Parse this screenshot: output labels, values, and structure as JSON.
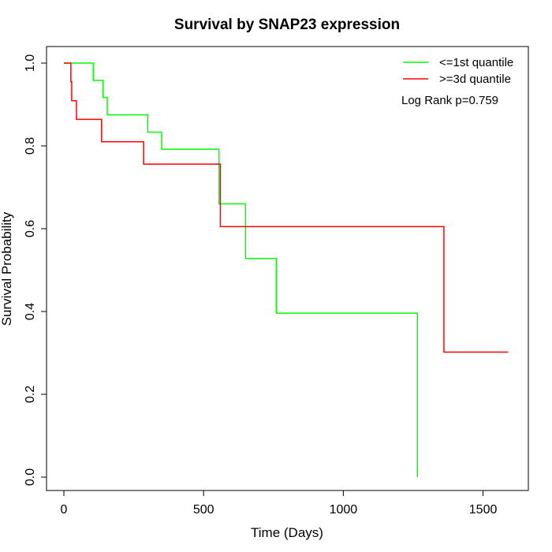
{
  "chart_data": {
    "type": "line",
    "title": "Survival by SNAP23 expression",
    "xlabel": "Time (Days)",
    "ylabel": "Survival Probability",
    "xlim": [
      0,
      1600
    ],
    "ylim": [
      0,
      1
    ],
    "xticks": [
      0,
      500,
      1000,
      1500
    ],
    "yticks": [
      0.0,
      0.2,
      0.4,
      0.6,
      0.8,
      1.0
    ],
    "xtick_labels": [
      "0",
      "500",
      "1000",
      "1500"
    ],
    "ytick_labels": [
      "0.0",
      "0.2",
      "0.4",
      "0.6",
      "0.8",
      "1.0"
    ],
    "legend_position": "top-right",
    "annotation": "Log Rank p=0.759",
    "grid": false,
    "series": [
      {
        "name": "<=1st quantile",
        "color": "#00ff00",
        "step": true,
        "x": [
          0,
          105,
          140,
          155,
          300,
          350,
          550,
          555,
          650,
          760,
          1265,
          1265
        ],
        "y": [
          1.0,
          0.958,
          0.917,
          0.875,
          0.833,
          0.792,
          0.792,
          0.66,
          0.528,
          0.396,
          0.396,
          0.0
        ]
      },
      {
        "name": ">=3d quantile",
        "color": "#ff0000",
        "step": true,
        "x": [
          0,
          25,
          28,
          45,
          135,
          285,
          555,
          560,
          1360,
          1590
        ],
        "y": [
          1.0,
          0.955,
          0.909,
          0.864,
          0.81,
          0.756,
          0.756,
          0.605,
          0.302,
          0.302
        ]
      }
    ]
  }
}
